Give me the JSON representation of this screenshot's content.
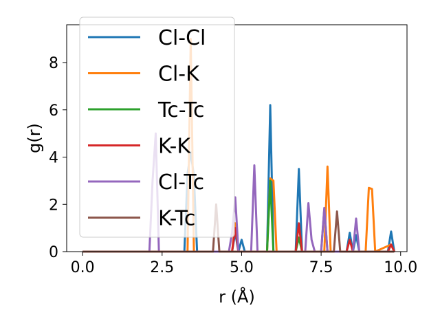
{
  "chart_data": {
    "type": "line",
    "xlabel": "r (Å)",
    "ylabel": "g(r)",
    "xlim": [
      -0.5,
      10.2
    ],
    "ylim": [
      0,
      9.6
    ],
    "xticks": [
      0.0,
      2.5,
      5.0,
      7.5,
      10.0
    ],
    "xtick_labels": [
      "0.0",
      "2.5",
      "5.0",
      "7.5",
      "10.0"
    ],
    "yticks": [
      0,
      2,
      4,
      6,
      8
    ],
    "ytick_labels": [
      "0",
      "2",
      "4",
      "6",
      "8"
    ],
    "grid": false,
    "legend_position": "top-left",
    "series": [
      {
        "name": "Cl-Cl",
        "color": "#1f77b4",
        "x": [
          0.0,
          3.2,
          3.3,
          3.4,
          3.5,
          3.6,
          4.7,
          4.8,
          4.9,
          5.0,
          5.1,
          5.8,
          5.9,
          6.0,
          6.7,
          6.8,
          6.9,
          7.5,
          7.6,
          7.7,
          8.3,
          8.4,
          8.5,
          8.6,
          8.7,
          9.6,
          9.7,
          9.8,
          9.8
        ],
        "y": [
          0,
          0,
          3.3,
          4.2,
          3.2,
          0,
          0,
          0.8,
          0,
          0.5,
          0,
          0,
          6.2,
          0,
          0,
          3.5,
          0,
          0,
          1.8,
          0,
          0,
          0.8,
          0,
          0.7,
          0,
          0,
          0.85,
          0,
          0
        ]
      },
      {
        "name": "Cl-K",
        "color": "#ff7f0e",
        "x": [
          0.0,
          3.3,
          3.4,
          3.5,
          4.7,
          4.8,
          4.9,
          5.8,
          5.9,
          6.0,
          6.1,
          7.6,
          7.7,
          7.8,
          8.9,
          9.0,
          9.1,
          9.2,
          9.7,
          9.8
        ],
        "y": [
          0,
          0,
          9.0,
          0,
          0,
          1.2,
          0,
          0,
          3.1,
          3.0,
          0,
          0,
          3.6,
          0,
          0,
          2.7,
          2.65,
          0,
          0.3,
          0
        ]
      },
      {
        "name": "Tc-Tc",
        "color": "#2ca02c",
        "x": [
          0.0,
          5.8,
          5.9,
          6.0,
          6.7,
          6.8,
          6.9,
          9.8
        ],
        "y": [
          0,
          0,
          3.0,
          0,
          0,
          0.6,
          0,
          0
        ]
      },
      {
        "name": "K-K",
        "color": "#d62728",
        "x": [
          0.0,
          4.7,
          4.8,
          4.9,
          6.7,
          6.8,
          6.9,
          8.3,
          8.4,
          8.5,
          9.6,
          9.7,
          9.8
        ],
        "y": [
          0,
          0,
          1.0,
          0,
          0,
          1.2,
          0,
          0,
          0.5,
          0,
          0,
          0.3,
          0
        ]
      },
      {
        "name": "Cl-Tc",
        "color": "#9467bd",
        "x": [
          0.0,
          2.1,
          2.2,
          2.3,
          2.4,
          4.6,
          4.7,
          4.8,
          4.9,
          5.3,
          5.4,
          5.5,
          7.0,
          7.1,
          7.2,
          7.3,
          7.5,
          7.6,
          7.7,
          8.5,
          8.6,
          8.7,
          9.8
        ],
        "y": [
          0,
          0,
          3.0,
          5.0,
          0,
          0,
          0.8,
          2.3,
          0,
          0,
          3.65,
          0,
          0,
          2.05,
          0.5,
          0,
          0,
          1.85,
          0,
          0,
          1.4,
          0,
          0
        ]
      },
      {
        "name": "K-Tc",
        "color": "#8c564b",
        "x": [
          0.0,
          4.1,
          4.2,
          4.3,
          7.9,
          8.0,
          8.1,
          9.8
        ],
        "y": [
          0,
          0,
          2.0,
          0,
          0,
          1.7,
          0,
          0
        ]
      }
    ]
  }
}
